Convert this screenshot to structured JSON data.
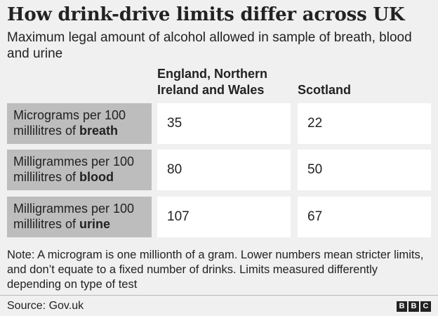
{
  "title": "How drink-drive limits differ across UK",
  "subtitle": "Maximum legal amount of alcohol allowed in sample of breath, blood and urine",
  "columns": [
    "England, Northern Ireland and Wales",
    "Scotland"
  ],
  "rows": [
    {
      "label_pre": "Micrograms per 100 millilitres of ",
      "label_bold": "breath",
      "values": [
        "35",
        "22"
      ]
    },
    {
      "label_pre": "Milligrammes per 100 millilitres of ",
      "label_bold": "blood",
      "values": [
        "80",
        "50"
      ]
    },
    {
      "label_pre": "Milligrammes per 100 millilitres of ",
      "label_bold": "urine",
      "values": [
        "107",
        "67"
      ]
    }
  ],
  "note": "Note: A microgram is one millionth of a gram. Lower numbers mean stricter limits, and don’t equate to a fixed number of drinks. Limits measured differently depending on type of test",
  "source": "Source: Gov.uk",
  "logo_letters": [
    "B",
    "B",
    "C"
  ],
  "chart_data": {
    "type": "table",
    "title": "How drink-drive limits differ across UK",
    "subtitle": "Maximum legal amount of alcohol allowed in sample of breath, blood and urine",
    "columns": [
      "England, Northern Ireland and Wales",
      "Scotland"
    ],
    "rows": [
      "Micrograms per 100 millilitres of breath",
      "Milligrammes per 100 millilitres of blood",
      "Milligrammes per 100 millilitres of urine"
    ],
    "series": [
      {
        "name": "England, Northern Ireland and Wales",
        "values": [
          35,
          80,
          107
        ]
      },
      {
        "name": "Scotland",
        "values": [
          22,
          50,
          67
        ]
      }
    ]
  },
  "colors": {
    "background": "#f0f0f0",
    "label_bg": "#bdbdbd",
    "cell_bg": "#ffffff",
    "text": "#222222"
  }
}
